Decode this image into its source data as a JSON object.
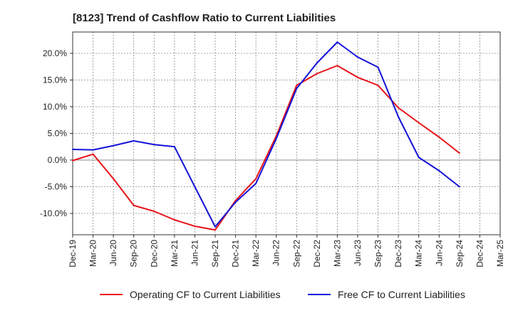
{
  "chart_data": {
    "type": "line",
    "title": "[8123]  Trend of Cashflow Ratio to Current Liabilities",
    "xlabel": "",
    "ylabel": "",
    "x": [
      "Dec-19",
      "Mar-20",
      "Jun-20",
      "Sep-20",
      "Dec-20",
      "Mar-21",
      "Jun-21",
      "Sep-21",
      "Dec-21",
      "Mar-22",
      "Jun-22",
      "Sep-22",
      "Dec-22",
      "Mar-23",
      "Jun-23",
      "Sep-23",
      "Dec-23",
      "Mar-24",
      "Jun-24",
      "Sep-24",
      "Dec-24",
      "Mar-25"
    ],
    "ylim": [
      -14,
      24
    ],
    "yticks": [
      -10,
      -5,
      0,
      5,
      10,
      15,
      20
    ],
    "ytick_labels": [
      "-10.0%",
      "-5.0%",
      "0.0%",
      "5.0%",
      "10.0%",
      "15.0%",
      "20.0%"
    ],
    "grid": true,
    "legend_position": "bottom",
    "series": [
      {
        "name": "Operating CF to Current Liabilities",
        "color": "#e8131a",
        "values": [
          -0.1,
          1.1,
          -3.5,
          -8.5,
          -9.6,
          -11.2,
          -12.4,
          -13.1,
          -7.6,
          -3.5,
          4.5,
          14.0,
          16.2,
          17.7,
          15.5,
          14.0,
          9.8,
          7.0,
          4.3,
          1.3,
          null,
          null
        ]
      },
      {
        "name": "Free CF to Current Liabilities",
        "color": "#1414d8",
        "values": [
          2.0,
          1.9,
          2.7,
          3.6,
          2.9,
          2.5,
          -5.0,
          -12.5,
          -7.9,
          -4.4,
          4.0,
          13.4,
          18.2,
          22.1,
          19.3,
          17.4,
          8.1,
          0.5,
          -2.0,
          -5.0,
          null,
          null
        ]
      }
    ]
  }
}
